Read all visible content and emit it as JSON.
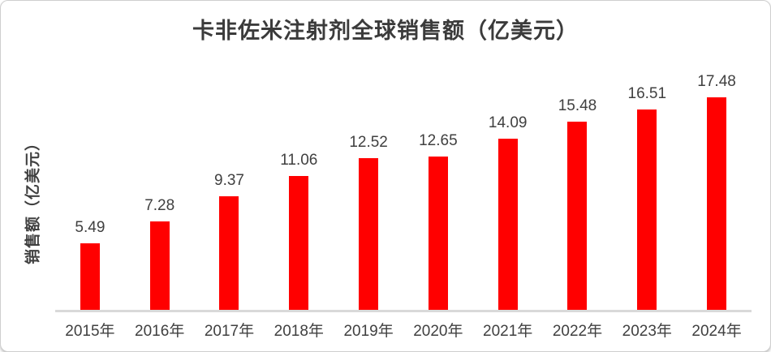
{
  "chart_data": {
    "type": "bar",
    "title": "卡非佐米注射剂全球销售额（亿美元）",
    "ylabel": "销售额（亿美元）",
    "xlabel": "",
    "categories": [
      "2015年",
      "2016年",
      "2017年",
      "2018年",
      "2019年",
      "2020年",
      "2021年",
      "2022年",
      "2023年",
      "2024年"
    ],
    "values": [
      5.49,
      7.28,
      9.37,
      11.06,
      12.52,
      12.65,
      14.09,
      15.48,
      16.51,
      17.48
    ],
    "data_labels": [
      "5.49",
      "7.28",
      "9.37",
      "11.06",
      "12.52",
      "12.65",
      "14.09",
      "15.48",
      "16.51",
      "17.48"
    ],
    "ylim": [
      0,
      18
    ],
    "grid": false,
    "legend": false,
    "bar_color": "#ff0000",
    "label_color": "#404040",
    "title_color": "#3b3b3b",
    "axis_line_color": "#d9d9d9"
  }
}
